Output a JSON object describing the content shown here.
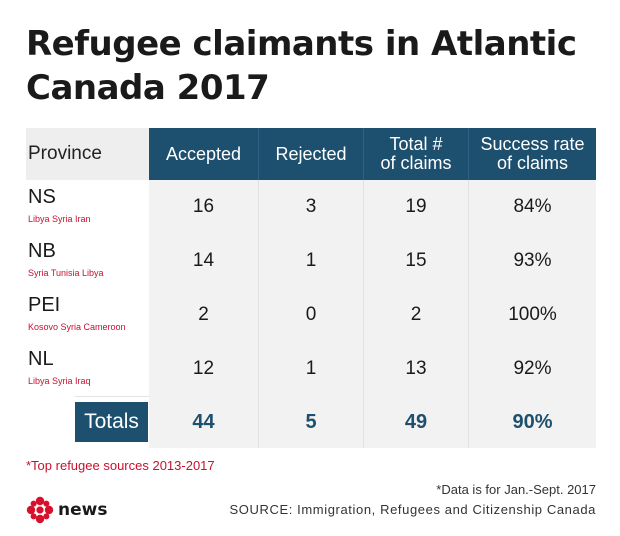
{
  "title": "Refugee claimants in Atlantic Canada 2017",
  "chart_data": {
    "type": "table",
    "columns": [
      "Province",
      "Accepted",
      "Rejected",
      "Total # of claims",
      "Success rate of claims"
    ],
    "header_lines": {
      "province": "Province",
      "accepted": "Accepted",
      "rejected": "Rejected",
      "total": [
        "Total #",
        "of claims"
      ],
      "rate": [
        "Success rate",
        "of claims"
      ]
    },
    "rows": [
      {
        "province": "NS",
        "sources": "Libya Syria Iran",
        "accepted": "16",
        "rejected": "3",
        "total": "19",
        "rate": "84%"
      },
      {
        "province": "NB",
        "sources": "Syria Tunisia Libya",
        "accepted": "14",
        "rejected": "1",
        "total": "15",
        "rate": "93%"
      },
      {
        "province": "PEI",
        "sources": "Kosovo Syria Cameroon",
        "accepted": "2",
        "rejected": "0",
        "total": "2",
        "rate": "100%"
      },
      {
        "province": "NL",
        "sources": "Libya Syria Iraq",
        "accepted": "12",
        "rejected": "1",
        "total": "13",
        "rate": "92%"
      }
    ],
    "totals": {
      "label": "Totals",
      "accepted": "44",
      "rejected": "5",
      "total": "49",
      "rate": "90%"
    }
  },
  "footnote": "*Top refugee sources 2013-2017",
  "data_note": "*Data is for Jan.-Sept. 2017",
  "source": "SOURCE: Immigration, Refugees and Citizenship Canada",
  "logo_text": "news",
  "colors": {
    "header": "#1d4f6e",
    "accent": "#c8102e",
    "cell_bg": "#f2f2f2"
  }
}
